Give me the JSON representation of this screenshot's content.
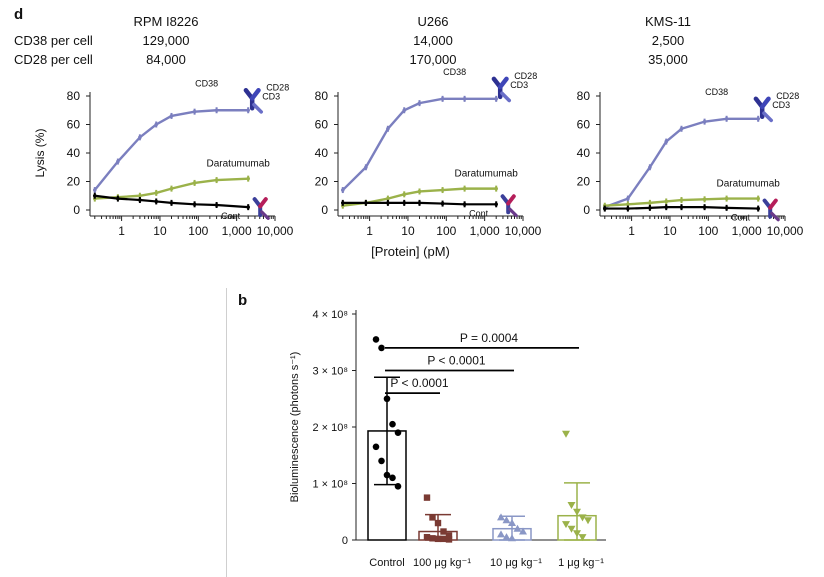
{
  "panel_d": {
    "letter": "d",
    "row_labels": [
      "CD38 per cell",
      "CD28 per cell"
    ],
    "cell_lines": [
      {
        "name": "RPM I8226",
        "cd38": "129,000",
        "cd28": "84,000"
      },
      {
        "name": "U266",
        "cd38": "14,000",
        "cd28": "170,000"
      },
      {
        "name": "KMS-11",
        "cd38": "2,500",
        "cd28": "35,000"
      }
    ]
  },
  "panel_b": {
    "letter": "b"
  },
  "colors": {
    "construct": "#7b7fbf",
    "daratumumab": "#9bb24a",
    "control": "#000000",
    "control_bar": "#000000",
    "dose100": "#7a3a33",
    "dose10": "#8a97c6",
    "dose1": "#9bb24a"
  },
  "chart_data": [
    {
      "type": "line",
      "title": "RPM I8226",
      "xlabel": "",
      "ylabel": "Lysis (%)",
      "xscale": "log",
      "xticks": [
        "1",
        "10",
        "100",
        "1,000",
        "10,000"
      ],
      "yticks": [
        "0",
        "20",
        "40",
        "60",
        "80"
      ],
      "ylim": [
        0,
        80
      ],
      "annotations": [
        "CD38",
        "CD28",
        "CD3",
        "Daratumumab",
        "Cont"
      ],
      "series": [
        {
          "name": "CD38xCD28xCD3",
          "x": [
            0.2,
            0.8,
            3,
            8,
            20,
            80,
            300,
            2000
          ],
          "y": [
            14,
            34,
            51,
            60,
            66,
            69,
            70,
            70
          ]
        },
        {
          "name": "Daratumumab",
          "x": [
            0.2,
            0.8,
            3,
            8,
            20,
            80,
            300,
            2000
          ],
          "y": [
            8,
            9,
            10,
            12,
            15,
            19,
            21,
            22
          ]
        },
        {
          "name": "Cont",
          "x": [
            0.2,
            0.8,
            3,
            8,
            20,
            80,
            300,
            2000
          ],
          "y": [
            10,
            8,
            7,
            6,
            5,
            4,
            3.5,
            2
          ]
        }
      ]
    },
    {
      "type": "line",
      "title": "U266",
      "xlabel": "[Protein] (pM)",
      "ylabel": "",
      "xscale": "log",
      "xticks": [
        "1",
        "10",
        "100",
        "1,000",
        "10,000"
      ],
      "yticks": [
        "0",
        "20",
        "40",
        "60",
        "80"
      ],
      "ylim": [
        0,
        80
      ],
      "annotations": [
        "CD38",
        "CD28",
        "CD3",
        "Daratumumab",
        "Cont"
      ],
      "series": [
        {
          "name": "CD38xCD28xCD3",
          "x": [
            0.2,
            0.8,
            3,
            8,
            20,
            80,
            300,
            2000
          ],
          "y": [
            14,
            30,
            57,
            70,
            75,
            78,
            78,
            78
          ]
        },
        {
          "name": "Daratumumab",
          "x": [
            0.2,
            0.8,
            3,
            8,
            20,
            80,
            300,
            2000
          ],
          "y": [
            3,
            5,
            8,
            11,
            13,
            14,
            15,
            15
          ]
        },
        {
          "name": "Cont",
          "x": [
            0.2,
            0.8,
            3,
            8,
            20,
            80,
            300,
            2000
          ],
          "y": [
            5,
            5,
            5,
            5,
            5,
            4.5,
            4,
            4
          ]
        }
      ]
    },
    {
      "type": "line",
      "title": "KMS-11",
      "xlabel": "",
      "ylabel": "",
      "xscale": "log",
      "xticks": [
        "1",
        "10",
        "100",
        "1,000",
        "10,000"
      ],
      "yticks": [
        "0",
        "20",
        "40",
        "60",
        "80"
      ],
      "ylim": [
        0,
        80
      ],
      "annotations": [
        "CD38",
        "CD28",
        "CD3",
        "Daratumumab",
        "Cont"
      ],
      "series": [
        {
          "name": "CD38xCD28xCD3",
          "x": [
            0.2,
            0.8,
            3,
            8,
            20,
            80,
            300,
            2000
          ],
          "y": [
            2,
            8,
            30,
            48,
            57,
            62,
            64,
            64
          ]
        },
        {
          "name": "Daratumumab",
          "x": [
            0.2,
            0.8,
            3,
            8,
            20,
            80,
            300,
            2000
          ],
          "y": [
            3,
            4,
            5,
            6,
            7,
            7.5,
            8,
            8
          ]
        },
        {
          "name": "Cont",
          "x": [
            0.2,
            0.8,
            3,
            8,
            20,
            80,
            300,
            2000
          ],
          "y": [
            1,
            1,
            1.5,
            2,
            2,
            2,
            1.5,
            1
          ]
        }
      ]
    },
    {
      "type": "bar",
      "title": "",
      "xlabel": "",
      "ylabel": "Bioluminescence (photons s⁻¹)",
      "ylim": [
        0,
        4
      ],
      "yunit_suffix": " × 10⁸",
      "yticks": [
        "0",
        "1 × 10⁸",
        "2 × 10⁸",
        "3 × 10⁸",
        "4 × 10⁸"
      ],
      "categories": [
        "Control",
        "100 μg kg⁻¹",
        "10 μg kg⁻¹",
        "1 μg kg⁻¹"
      ],
      "means": [
        1.93,
        0.15,
        0.2,
        0.43
      ],
      "sd": [
        0.95,
        0.3,
        0.22,
        0.58
      ],
      "points": [
        [
          3.55,
          3.4,
          2.5,
          2.05,
          1.9,
          1.65,
          1.4,
          1.15,
          1.1,
          0.95
        ],
        [
          0.75,
          0.4,
          0.3,
          0.15,
          0.08,
          0.05,
          0.03,
          0.02,
          0.02,
          0.01
        ],
        [
          0.4,
          0.35,
          0.3,
          0.2,
          0.15,
          0.1,
          0.05,
          0.03
        ],
        [
          1.88,
          0.62,
          0.5,
          0.4,
          0.35,
          0.28,
          0.2,
          0.12,
          0.05
        ]
      ],
      "comparisons": [
        {
          "from": 0,
          "to": 1,
          "label": "P < 0.0001",
          "y": 2.6
        },
        {
          "from": 0,
          "to": 2,
          "label": "P < 0.0001",
          "y": 3.0
        },
        {
          "from": 0,
          "to": 3,
          "label": "P = 0.0004",
          "y": 3.4
        }
      ]
    }
  ]
}
